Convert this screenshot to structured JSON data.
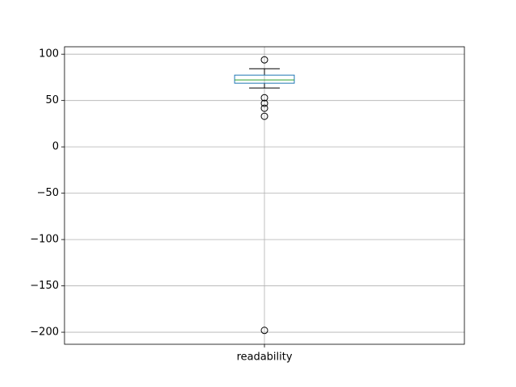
{
  "chart_data": {
    "type": "box",
    "categories": [
      "readability"
    ],
    "boxes": [
      {
        "whisker_low": 63.5,
        "q1": 68.7,
        "median": 72.2,
        "q3": 77.4,
        "whisker_high": 84.3,
        "outliers": [
          93.9,
          53,
          47,
          41.7,
          33,
          -198
        ]
      }
    ],
    "box_color": "#1f77b4",
    "median_color": "#2ca02c",
    "whisker_color": "#000000",
    "ylim": [
      -213,
      108
    ],
    "yticks": [
      {
        "value": -200,
        "label": "−200"
      },
      {
        "value": -150,
        "label": "−150"
      },
      {
        "value": -100,
        "label": "−100"
      },
      {
        "value": -50,
        "label": "−50"
      },
      0,
      50,
      100
    ],
    "grid": true
  }
}
